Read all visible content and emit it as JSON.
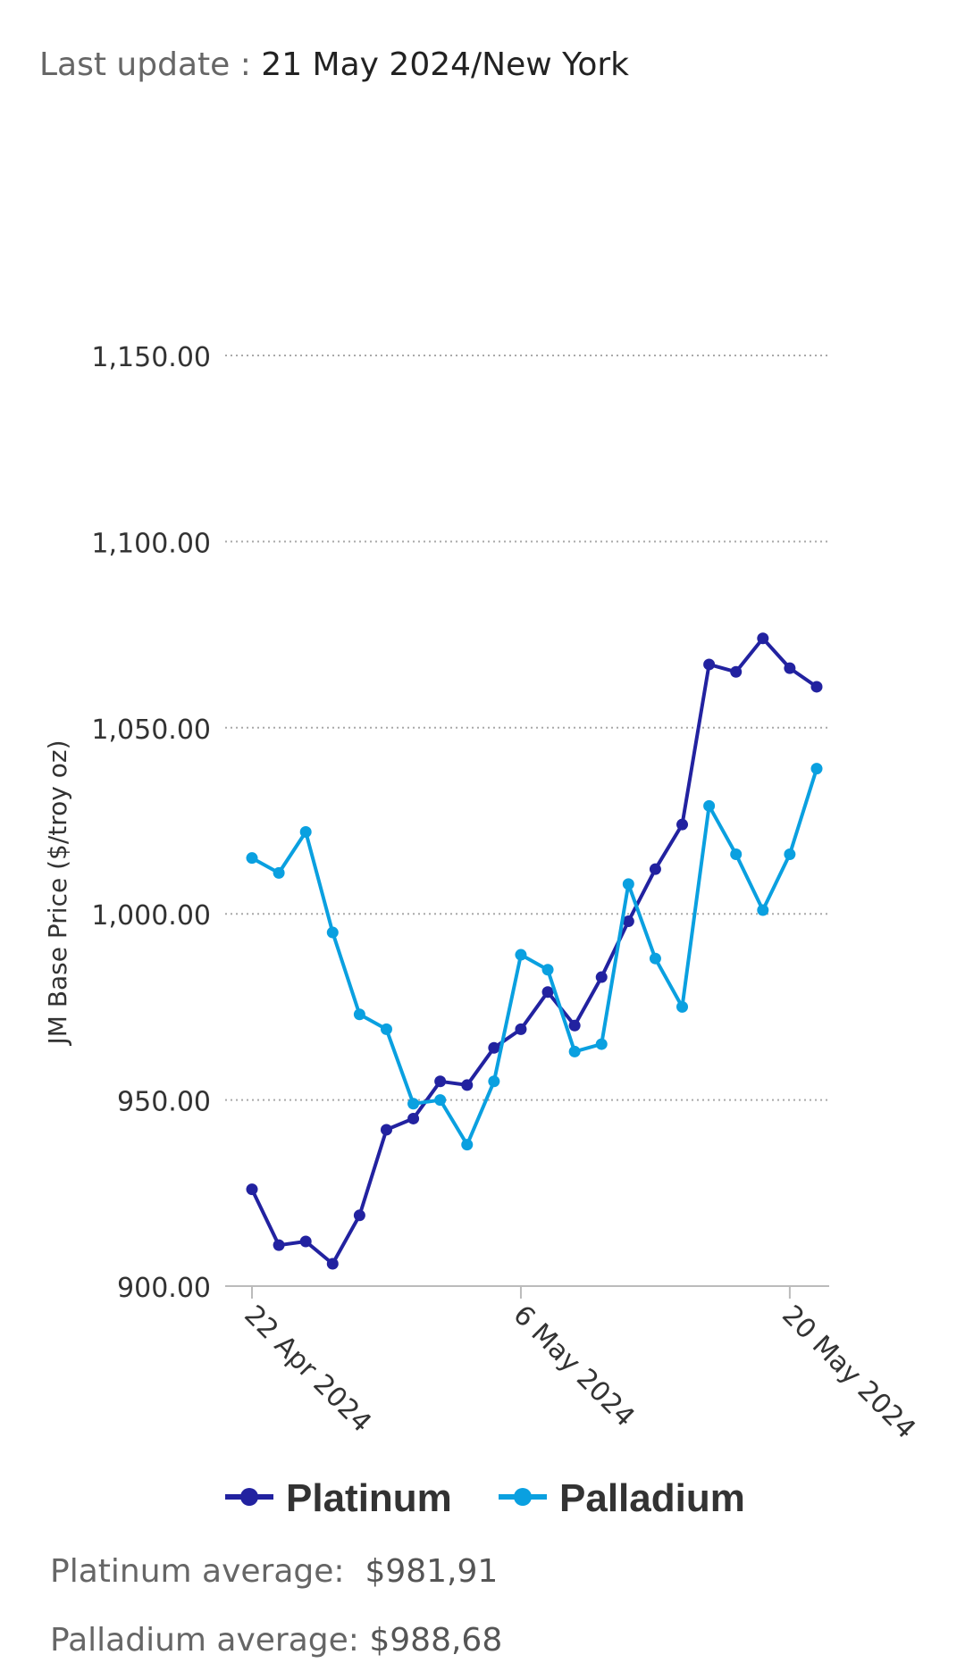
{
  "header": {
    "label": "Last update : ",
    "value": "21 May 2024/New York"
  },
  "chart_data": {
    "type": "line",
    "ylabel": "JM Base Price ($/troy oz)",
    "xlabel": "",
    "ylim": [
      900,
      1150
    ],
    "yticks": [
      900,
      950,
      1000,
      1050,
      1100,
      1150
    ],
    "ytick_labels": [
      "900.00",
      "950.00",
      "1,000.00",
      "1,050.00",
      "1,100.00",
      "1,150.00"
    ],
    "grid": true,
    "x_count": 22,
    "xticks": [
      {
        "index": 0,
        "label": "22 Apr 2024"
      },
      {
        "index": 10,
        "label": "6 May 2024"
      },
      {
        "index": 20,
        "label": "20 May 2024"
      }
    ],
    "legend_position": "bottom",
    "series": [
      {
        "name": "Platinum",
        "color": "#2222a0",
        "values": [
          926,
          911,
          912,
          906,
          919,
          942,
          945,
          955,
          954,
          964,
          969,
          979,
          970,
          983,
          998,
          1012,
          1024,
          1067,
          1065,
          1074,
          1066,
          1061
        ]
      },
      {
        "name": "Palladium",
        "color": "#0aa0e0",
        "values": [
          1015,
          1011,
          1022,
          995,
          973,
          969,
          949,
          950,
          938,
          955,
          989,
          985,
          963,
          965,
          1008,
          988,
          975,
          1029,
          1016,
          1001,
          1016,
          1039
        ]
      }
    ]
  },
  "stats": {
    "platinum_label": "Platinum average:  ",
    "platinum_value": "$981,91",
    "palladium_label": "Palladium average: ",
    "palladium_value": "$988,68"
  }
}
